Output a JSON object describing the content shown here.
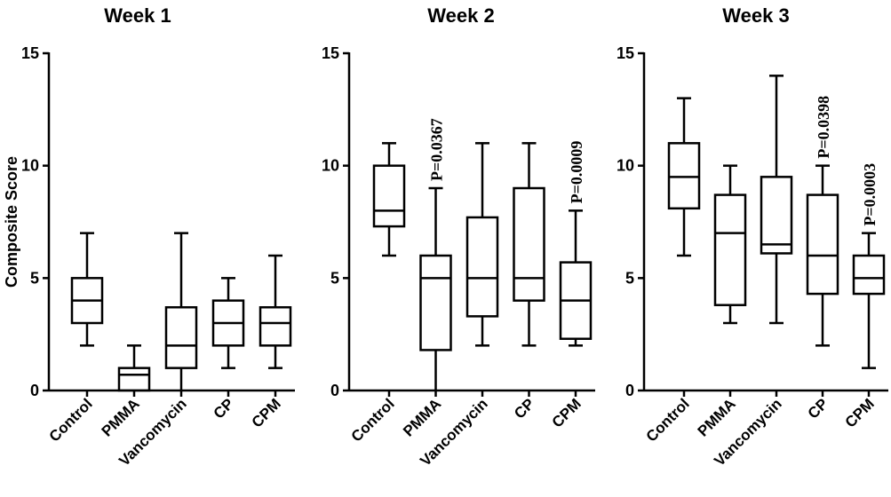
{
  "chart_data": [
    {
      "type": "box",
      "title": "Week 1",
      "ylabel": "Composite Score",
      "ylim": [
        0,
        15
      ],
      "yticks": [
        0,
        5,
        10,
        15
      ],
      "categories": [
        "Control",
        "PMMA",
        "Vancomycin",
        "CP",
        "CPM"
      ],
      "boxes": [
        {
          "min": 2,
          "q1": 3,
          "median": 4,
          "q3": 5,
          "max": 7
        },
        {
          "min": 0,
          "q1": 0,
          "median": 0.7,
          "q3": 1,
          "max": 2
        },
        {
          "min": 0,
          "q1": 1,
          "median": 2,
          "q3": 3.7,
          "max": 7
        },
        {
          "min": 1,
          "q1": 2,
          "median": 3,
          "q3": 4,
          "max": 5
        },
        {
          "min": 1,
          "q1": 2,
          "median": 3,
          "q3": 3.7,
          "max": 6
        }
      ],
      "annotations": []
    },
    {
      "type": "box",
      "title": "Week 2",
      "ylabel": "",
      "ylim": [
        0,
        15
      ],
      "yticks": [
        0,
        5,
        10,
        15
      ],
      "categories": [
        "Control",
        "PMMA",
        "Vancomycin",
        "CP",
        "CPM"
      ],
      "boxes": [
        {
          "min": 6,
          "q1": 7.3,
          "median": 8,
          "q3": 10,
          "max": 11
        },
        {
          "min": 0,
          "q1": 1.8,
          "median": 5,
          "q3": 6,
          "max": 9
        },
        {
          "min": 2,
          "q1": 3.3,
          "median": 5,
          "q3": 7.7,
          "max": 11
        },
        {
          "min": 2,
          "q1": 4,
          "median": 5,
          "q3": 9,
          "max": 11
        },
        {
          "min": 2,
          "q1": 2.3,
          "median": 4,
          "q3": 5.7,
          "max": 8
        }
      ],
      "annotations": [
        {
          "category": "PMMA",
          "text": "P=0.0367"
        },
        {
          "category": "CPM",
          "text": "P=0.0009"
        }
      ]
    },
    {
      "type": "box",
      "title": "Week 3",
      "ylabel": "",
      "ylim": [
        0,
        15
      ],
      "yticks": [
        0,
        5,
        10,
        15
      ],
      "categories": [
        "Control",
        "PMMA",
        "Vancomycin",
        "CP",
        "CPM"
      ],
      "boxes": [
        {
          "min": 6,
          "q1": 8.1,
          "median": 9.5,
          "q3": 11,
          "max": 13
        },
        {
          "min": 3,
          "q1": 3.8,
          "median": 7,
          "q3": 8.7,
          "max": 10
        },
        {
          "min": 3,
          "q1": 6.1,
          "median": 6.5,
          "q3": 9.5,
          "max": 14
        },
        {
          "min": 2,
          "q1": 4.3,
          "median": 6,
          "q3": 8.7,
          "max": 10
        },
        {
          "min": 1,
          "q1": 4.3,
          "median": 5,
          "q3": 6,
          "max": 7
        }
      ],
      "annotations": [
        {
          "category": "CP",
          "text": "P=0.0398"
        },
        {
          "category": "CPM",
          "text": "P=0.0003"
        }
      ]
    }
  ]
}
